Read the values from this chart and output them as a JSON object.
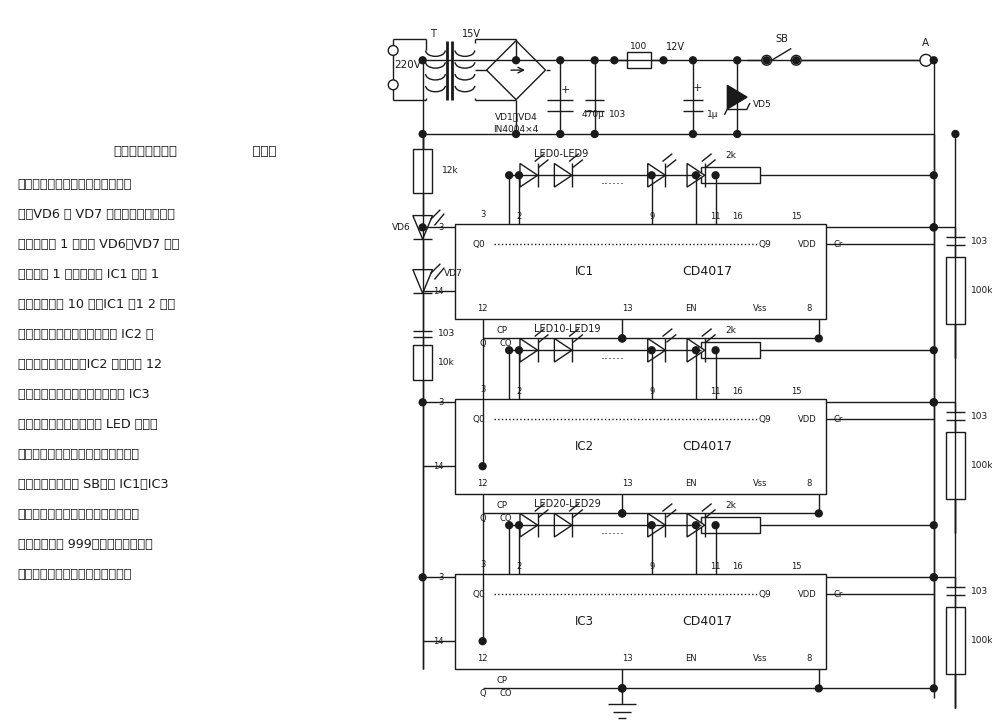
{
  "bg_color": "#ffffff",
  "line_color": "#1a1a1a",
  "figsize": [
    9.92,
    7.28
  ],
  "dpi": 100,
  "lw": 1.0,
  "text_title_bold": "绕线机电子计数器",
  "text_title_normal": "  电路得",
  "text_body_lines": [
    "电后，三个集成电路复位，等待计",
    "数。VD6 和 VD7 组成计数触发装置。",
    "绕线机每转 1 圈，将 VD6、VD7 的红",
    "外线遥挡 1 次，从而使 IC1 计数 1",
    "次。待计数达 10 次，IC1 的1 2 脚输",
    "出进位脉冲，驱动十位计数器 IC2 计",
    "数；待到上百圈后，IC2 也会由第 12",
    "脚输出进位脉冲驱动百位计数器 IC3",
    "工作。这样可以方便地从 LED 的发光",
    "情况直接地读出所绕的圈数。每次读",
    "数完毕后要按一下 SB，使 IC1～IC3",
    "复位，以备下次使用。本计数器的最",
    "大计数范围是 999，如需更大的计数",
    "范围，可自行增加计数集成电路。"
  ]
}
